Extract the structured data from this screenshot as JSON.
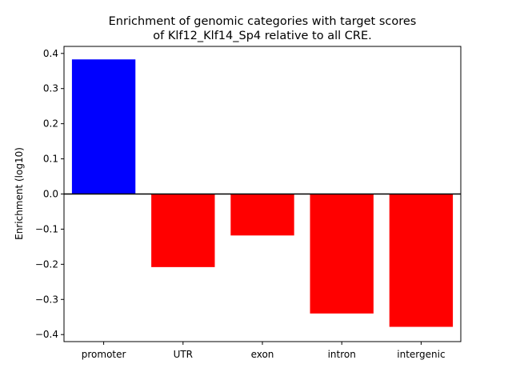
{
  "chart_data": {
    "type": "bar",
    "title_lines": [
      "Enrichment of genomic categories with target scores",
      "of Klf12_Klf14_Sp4 relative to all CRE."
    ],
    "xlabel": "",
    "ylabel": "Enrichment (log10)",
    "categories": [
      "promoter",
      "UTR",
      "exon",
      "intron",
      "intergenic"
    ],
    "values": [
      0.383,
      -0.208,
      -0.118,
      -0.34,
      -0.378
    ],
    "bar_colors": [
      "#0000ff",
      "#ff0000",
      "#ff0000",
      "#ff0000",
      "#ff0000"
    ],
    "ylim": [
      -0.42,
      0.42
    ],
    "yticks": [
      -0.4,
      -0.3,
      -0.2,
      -0.1,
      0.0,
      0.1,
      0.2,
      0.3,
      0.4
    ],
    "ytick_labels": [
      "−0.4",
      "−0.3",
      "−0.2",
      "−0.1",
      "0.0",
      "0.1",
      "0.2",
      "0.3",
      "0.4"
    ],
    "zero_line": true,
    "grid": false,
    "legend": "none"
  }
}
